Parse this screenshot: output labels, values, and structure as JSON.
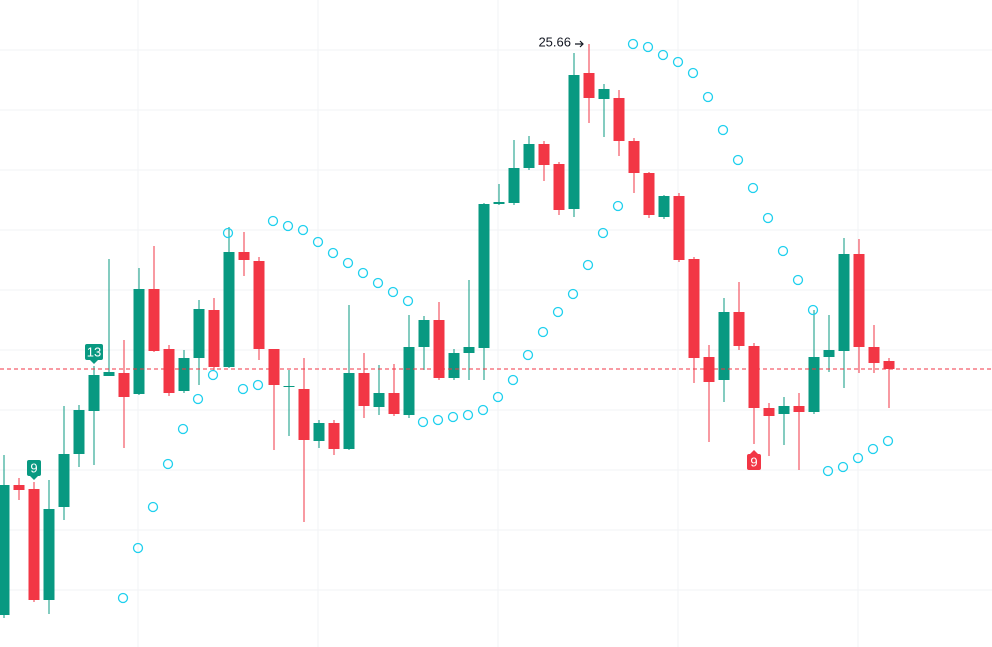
{
  "chart_data": {
    "type": "candlestick",
    "open": [
      19.95,
      21.25,
      21.21,
      20.1,
      21.03,
      21.56,
      21.99,
      22.34,
      22.37,
      22.16,
      23.21,
      22.61,
      22.19,
      22.52,
      23.0,
      22.43,
      23.58,
      23.49,
      22.61,
      22.23,
      22.21,
      21.69,
      21.87,
      21.61,
      22.37,
      22.03,
      22.17,
      21.95,
      22.63,
      22.9,
      22.32,
      22.57,
      22.62,
      24.06,
      24.07,
      24.42,
      24.66,
      24.46,
      24.01,
      25.37,
      25.11,
      25.12,
      24.69,
      24.37,
      23.93,
      24.14,
      23.51,
      22.53,
      22.3,
      22.98,
      22.64,
      22.02,
      21.96,
      22.04,
      21.98,
      22.53,
      22.59,
      23.56,
      22.63,
      22.49
    ],
    "high": [
      21.55,
      21.32,
      21.28,
      21.3,
      22.04,
      22.05,
      22.44,
      23.51,
      22.7,
      23.42,
      23.64,
      22.65,
      22.6,
      23.1,
      23.12,
      23.83,
      23.78,
      23.53,
      22.61,
      22.4,
      22.52,
      21.9,
      21.9,
      23.05,
      22.57,
      22.45,
      22.46,
      22.95,
      22.94,
      23.08,
      22.61,
      23.3,
      24.07,
      24.26,
      24.7,
      24.74,
      24.69,
      24.48,
      25.57,
      25.66,
      25.26,
      25.2,
      24.72,
      24.38,
      24.15,
      24.17,
      23.53,
      22.65,
      23.12,
      23.28,
      22.67,
      22.07,
      22.13,
      22.17,
      23.0,
      22.95,
      23.72,
      23.71,
      22.85,
      22.52
    ],
    "low": [
      19.92,
      21.1,
      20.08,
      19.96,
      20.9,
      21.43,
      21.45,
      22.34,
      21.62,
      22.15,
      22.58,
      22.14,
      22.17,
      22.25,
      22.4,
      22.42,
      23.34,
      22.5,
      21.6,
      21.74,
      20.88,
      21.62,
      21.55,
      21.6,
      21.92,
      21.95,
      21.94,
      21.92,
      22.4,
      22.3,
      22.3,
      22.3,
      22.3,
      24.05,
      24.05,
      24.4,
      24.29,
      23.95,
      23.93,
      24.87,
      24.73,
      24.54,
      24.17,
      23.92,
      23.91,
      23.48,
      22.27,
      21.68,
      22.08,
      22.6,
      21.66,
      21.54,
      21.65,
      21.4,
      21.96,
      22.38,
      22.22,
      22.37,
      22.37,
      22.02
    ],
    "close": [
      21.25,
      21.2,
      20.1,
      21.01,
      21.56,
      22.0,
      22.35,
      22.38,
      22.13,
      23.21,
      22.59,
      22.17,
      22.52,
      23.01,
      22.43,
      23.58,
      23.5,
      22.61,
      22.25,
      22.24,
      21.7,
      21.87,
      21.61,
      22.37,
      22.04,
      22.17,
      21.96,
      22.63,
      22.9,
      22.32,
      22.57,
      22.63,
      24.06,
      24.08,
      24.42,
      24.66,
      24.45,
      24.0,
      25.35,
      25.12,
      25.21,
      24.69,
      24.37,
      23.95,
      24.14,
      23.5,
      22.52,
      22.28,
      22.98,
      22.64,
      22.02,
      21.94,
      22.04,
      21.98,
      22.53,
      22.6,
      23.56,
      22.63,
      22.47,
      22.41
    ],
    "up_color": "#089981",
    "down_color": "#f23645",
    "sar": {
      "color": "#1fd0ee",
      "values": [
        null,
        null,
        null,
        null,
        null,
        null,
        null,
        null,
        20.12,
        20.62,
        21.03,
        21.46,
        21.81,
        22.11,
        22.35,
        23.77,
        22.21,
        22.25,
        23.89,
        23.84,
        23.8,
        23.68,
        23.57,
        23.47,
        23.37,
        23.27,
        23.18,
        23.09,
        21.88,
        21.9,
        21.93,
        21.95,
        22.0,
        22.13,
        22.3,
        22.55,
        22.78,
        22.98,
        23.16,
        23.45,
        23.77,
        24.04,
        25.66,
        25.63,
        25.55,
        25.48,
        25.37,
        25.13,
        24.8,
        24.5,
        24.22,
        23.92,
        23.59,
        23.3,
        23.0,
        21.39,
        21.43,
        21.52,
        21.61,
        21.69
      ]
    },
    "markers": [
      {
        "index": 2,
        "label": "9",
        "position": "above",
        "color": "#089981"
      },
      {
        "index": 6,
        "label": "13",
        "position": "above",
        "color": "#089981"
      },
      {
        "index": 50,
        "label": "9",
        "position": "below",
        "color": "#f23645"
      }
    ],
    "high_label_index": 39,
    "ylim": [
      19.63,
      26.1
    ],
    "yticks": [
      25.6,
      25.0,
      24.4,
      23.8,
      23.2,
      22.6,
      22.0,
      21.4,
      20.8,
      20.2
    ],
    "xgrid_index": [
      9,
      21,
      33,
      45,
      57
    ],
    "grid": true
  }
}
